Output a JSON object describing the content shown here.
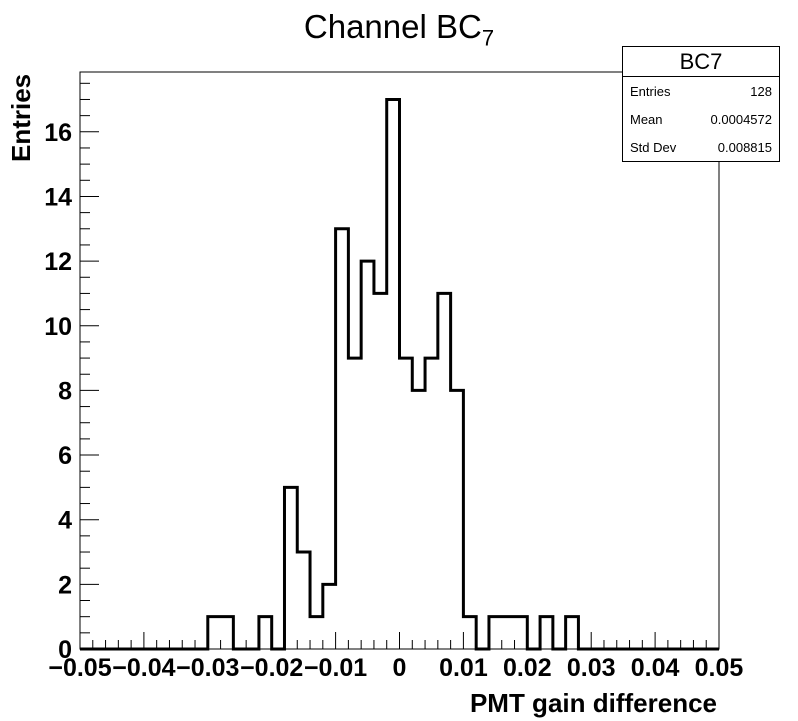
{
  "chart_data": {
    "type": "bar",
    "title": "Channel BC",
    "title_subscript": "7",
    "xlabel": "PMT gain difference",
    "ylabel": "Entries",
    "xlim": [
      -0.05,
      0.05
    ],
    "ylim": [
      0,
      17.85
    ],
    "bin_width": 0.002,
    "x_ticks": [
      "-0.05",
      "-0.04",
      "-0.03",
      "-0.02",
      "-0.01",
      "0",
      "0.01",
      "0.02",
      "0.03",
      "0.04",
      "0.05"
    ],
    "y_ticks": [
      "0",
      "2",
      "4",
      "6",
      "8",
      "10",
      "12",
      "14",
      "16"
    ],
    "bins_start": -0.05,
    "values": [
      0,
      0,
      0,
      0,
      0,
      0,
      0,
      0,
      0,
      0,
      1,
      1,
      0,
      0,
      1,
      0,
      5,
      3,
      1,
      2,
      13,
      9,
      12,
      11,
      17,
      9,
      8,
      9,
      11,
      8,
      1,
      0,
      1,
      1,
      1,
      0,
      1,
      0,
      1,
      0,
      0,
      0,
      0,
      0,
      0,
      0,
      0,
      0,
      0,
      0
    ],
    "grid": false
  },
  "stats_box": {
    "title": "BC7",
    "rows": [
      {
        "label": "Entries",
        "value": "128"
      },
      {
        "label": "Mean",
        "value": "0.0004572"
      },
      {
        "label": "Std Dev",
        "value": "0.008815"
      }
    ]
  }
}
